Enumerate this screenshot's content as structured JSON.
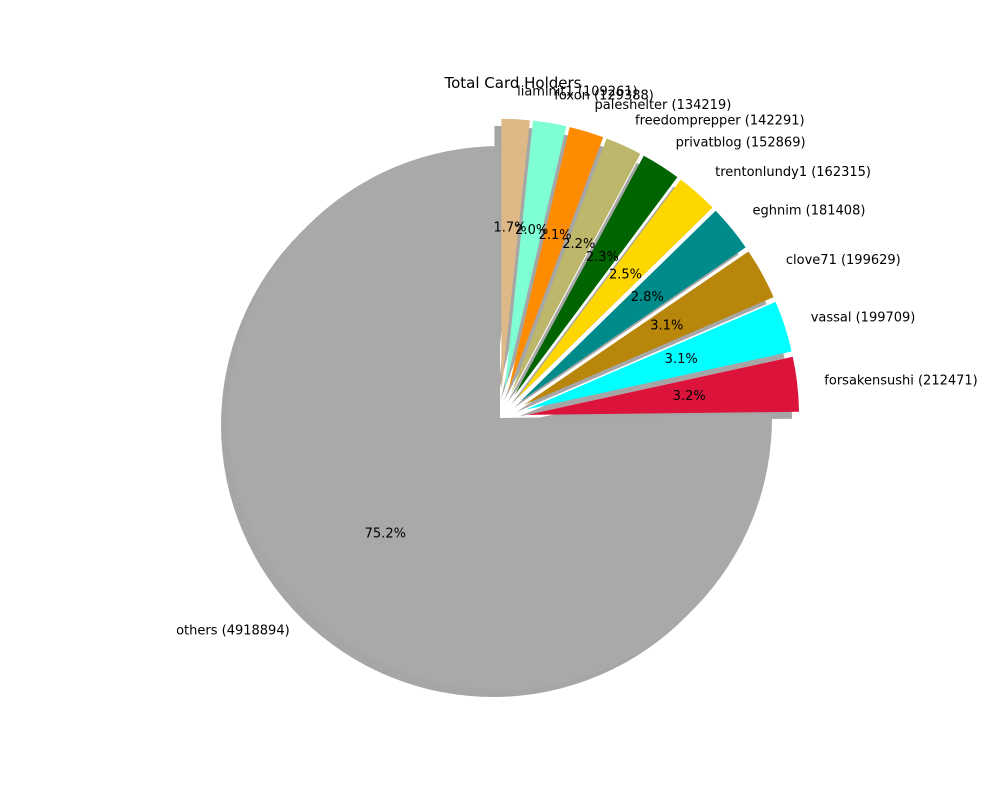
{
  "chart_data": {
    "type": "pie",
    "title": "Total Card Holders",
    "start_angle_deg": 90,
    "direction": "clockwise",
    "shadow": true,
    "slices": [
      {
        "label": "liaminit1 (109261)",
        "value": 109261,
        "pct": "1.7%",
        "color": "#deb887",
        "explode": 0.1
      },
      {
        "label": "foxon (129388)",
        "value": 129388,
        "pct": "2.0%",
        "color": "#7fffd4",
        "explode": 0.1
      },
      {
        "label": "paleshelter (134219)",
        "value": 134219,
        "pct": "2.1%",
        "color": "#ff8c00",
        "explode": 0.1
      },
      {
        "label": "freedomprepper (142291)",
        "value": 142291,
        "pct": "2.2%",
        "color": "#bdb76b",
        "explode": 0.1
      },
      {
        "label": "privatblog (152869)",
        "value": 152869,
        "pct": "2.3%",
        "color": "#006400",
        "explode": 0.1
      },
      {
        "label": "trentonlundy1 (162315)",
        "value": 162315,
        "pct": "2.5%",
        "color": "#ffd700",
        "explode": 0.1
      },
      {
        "label": "eghnim (181408)",
        "value": 181408,
        "pct": "2.8%",
        "color": "#008b8b",
        "explode": 0.1
      },
      {
        "label": "clove71 (199629)",
        "value": 199629,
        "pct": "3.1%",
        "color": "#b8860b",
        "explode": 0.1
      },
      {
        "label": "vassal (199709)",
        "value": 199709,
        "pct": "3.1%",
        "color": "#00ffff",
        "explode": 0.1
      },
      {
        "label": "forsakensushi (212471)",
        "value": 212471,
        "pct": "3.2%",
        "color": "#dc143c",
        "explode": 0.1
      },
      {
        "label": "others (4918894)",
        "value": 4918894,
        "pct": "75.2%",
        "color": "#a9a9a9",
        "explode": 0.0
      }
    ]
  }
}
